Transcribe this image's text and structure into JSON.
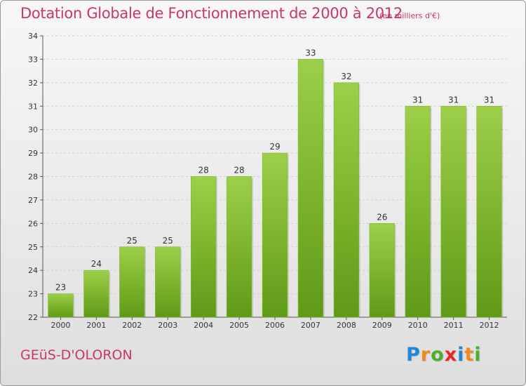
{
  "title": "Dotation Globale de Fonctionnement de 2000 à 2012",
  "subtitle": "(en milliers d'€)",
  "commune": "GEüS-D'OLORON",
  "logo": {
    "text": "Proxiti",
    "letters": [
      {
        "char": "P",
        "color": "#1e88d8"
      },
      {
        "char": "r",
        "color": "#f08a1c"
      },
      {
        "char": "o",
        "color": "#4caf2a"
      },
      {
        "char": "x",
        "color": "#e8262a"
      },
      {
        "char": "i",
        "color": "#1e88d8"
      },
      {
        "char": "t",
        "color": "#f08a1c"
      },
      {
        "char": "i",
        "color": "#4caf2a"
      }
    ]
  },
  "colors": {
    "accent": "#c8366a",
    "bar_top": "#9ccf4a",
    "bar_bottom": "#5f9a16",
    "grid": "#cfcfcf"
  },
  "chart_data": {
    "type": "bar",
    "title": "Dotation Globale de Fonctionnement de 2000 à 2012",
    "subtitle": "(en milliers d'€)",
    "categories": [
      "2000",
      "2001",
      "2002",
      "2003",
      "2004",
      "2005",
      "2006",
      "2007",
      "2008",
      "2009",
      "2010",
      "2011",
      "2012"
    ],
    "values": [
      23,
      24,
      25,
      25,
      28,
      28,
      29,
      33,
      32,
      26,
      31,
      31,
      31
    ],
    "ylim": [
      22,
      34
    ],
    "yticks": [
      22,
      23,
      24,
      25,
      26,
      27,
      28,
      29,
      30,
      31,
      32,
      33,
      34
    ],
    "grid": true,
    "xlabel": "",
    "ylabel": ""
  }
}
